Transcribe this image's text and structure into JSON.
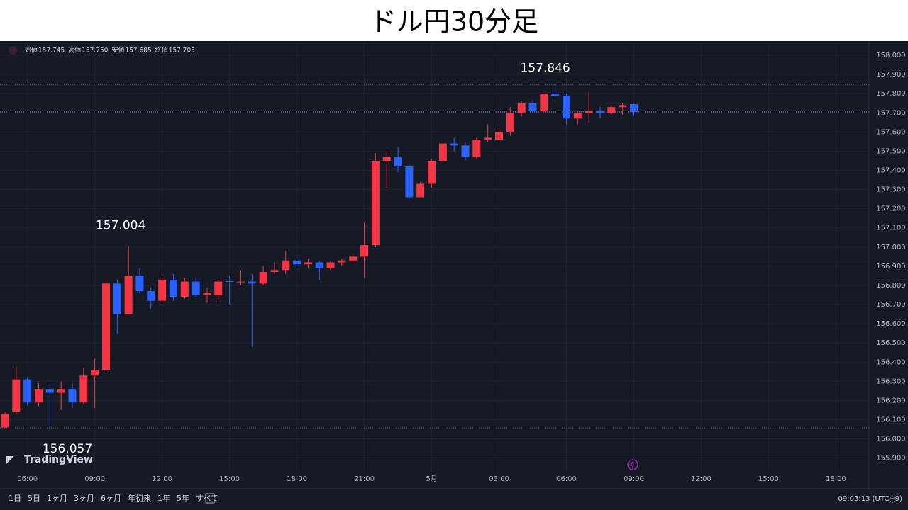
{
  "chart_data": {
    "type": "candlestick",
    "title": "ドル円30分足",
    "categories": [
      null,
      null,
      "06:00",
      null,
      null,
      null,
      null,
      null,
      "09:00",
      null,
      null,
      null,
      null,
      null,
      "12:00",
      null,
      null,
      null,
      null,
      null,
      "15:00",
      null,
      null,
      null,
      null,
      null,
      "18:00",
      null,
      null,
      null,
      null,
      null,
      "21:00",
      null,
      null,
      null,
      null,
      null,
      "5月",
      null,
      null,
      null,
      null,
      null,
      "03:00",
      null,
      null,
      null,
      null,
      null,
      "06:00",
      null,
      null,
      null,
      null,
      null,
      "09:00",
      null,
      null,
      null,
      null,
      null,
      "12:00",
      null,
      null,
      null,
      null,
      null,
      "15:00",
      null,
      null,
      null,
      null,
      null,
      "18:00",
      null,
      null,
      null
    ],
    "open": [
      156.06,
      156.14,
      156.31,
      156.19,
      156.26,
      156.24,
      156.26,
      156.19,
      156.33,
      156.36,
      156.81,
      156.65,
      156.85,
      156.77,
      156.72,
      156.83,
      156.74,
      156.82,
      156.75,
      156.75,
      156.822,
      156.82,
      156.82,
      156.81,
      156.87,
      156.88,
      156.93,
      156.91,
      156.92,
      156.89,
      156.92,
      156.93,
      156.95,
      157.01,
      157.45,
      157.47,
      157.42,
      157.26,
      157.33,
      157.45,
      157.54,
      157.53,
      157.47,
      157.56,
      157.56,
      157.6,
      157.7,
      157.75,
      157.71,
      157.8,
      157.79,
      157.67,
      157.7,
      157.71,
      157.7,
      157.73,
      157.745,
      null,
      null,
      null,
      null,
      null,
      null,
      null,
      null,
      null,
      null,
      null,
      null,
      null,
      null,
      null,
      null,
      null,
      null,
      null,
      null,
      null
    ],
    "high": [
      156.14,
      156.38,
      156.32,
      156.29,
      156.29,
      156.3,
      156.29,
      156.37,
      156.42,
      156.84,
      156.83,
      157.004,
      156.89,
      156.79,
      156.86,
      156.86,
      156.84,
      156.84,
      156.79,
      156.83,
      156.85,
      156.88,
      156.86,
      156.9,
      156.92,
      156.98,
      156.95,
      156.94,
      156.93,
      156.93,
      156.94,
      156.96,
      157.13,
      157.49,
      157.5,
      157.52,
      157.43,
      157.34,
      157.46,
      157.55,
      157.57,
      157.55,
      157.57,
      157.64,
      157.62,
      157.73,
      157.76,
      157.77,
      157.8,
      157.846,
      157.8,
      157.71,
      157.81,
      157.73,
      157.74,
      157.75,
      157.75,
      null,
      null,
      null,
      null,
      null,
      null,
      null,
      null,
      null,
      null,
      null,
      null,
      null,
      null,
      null,
      null,
      null,
      null,
      null,
      null,
      null
    ],
    "low": [
      156.057,
      156.13,
      156.17,
      156.17,
      156.06,
      156.15,
      156.16,
      156.18,
      156.16,
      156.35,
      156.55,
      156.65,
      156.76,
      156.68,
      156.71,
      156.72,
      156.73,
      156.74,
      156.71,
      156.71,
      156.7,
      156.8,
      156.48,
      156.8,
      156.86,
      156.86,
      156.88,
      156.89,
      156.83,
      156.88,
      156.9,
      156.92,
      156.84,
      157.0,
      157.31,
      157.39,
      157.25,
      157.26,
      157.31,
      157.44,
      157.5,
      157.45,
      157.46,
      157.55,
      157.55,
      157.58,
      157.68,
      157.7,
      157.7,
      157.78,
      157.64,
      157.64,
      157.65,
      157.67,
      157.69,
      157.69,
      157.685,
      null,
      null,
      null,
      null,
      null,
      null,
      null,
      null,
      null,
      null,
      null,
      null,
      null,
      null,
      null,
      null,
      null,
      null,
      null,
      null,
      null
    ],
    "close": [
      156.13,
      156.31,
      156.19,
      156.26,
      156.24,
      156.26,
      156.19,
      156.33,
      156.36,
      156.81,
      156.65,
      156.85,
      156.77,
      156.72,
      156.83,
      156.74,
      156.82,
      156.75,
      156.76,
      156.82,
      156.82,
      156.82,
      156.81,
      156.87,
      156.88,
      156.93,
      156.91,
      156.92,
      156.89,
      156.92,
      156.93,
      156.95,
      157.01,
      157.45,
      157.47,
      157.42,
      157.26,
      157.33,
      157.45,
      157.54,
      157.53,
      157.47,
      157.56,
      157.57,
      157.6,
      157.7,
      157.75,
      157.71,
      157.8,
      157.79,
      157.67,
      157.7,
      157.71,
      157.7,
      157.73,
      157.74,
      157.705,
      null,
      null,
      null,
      null,
      null,
      null,
      null,
      null,
      null,
      null,
      null,
      null,
      null,
      null,
      null,
      null,
      null,
      null,
      null,
      null,
      null
    ],
    "up_color": "#f23645",
    "down_color": "#2962ff",
    "ylim": [
      155.74,
      158.074
    ],
    "yticks": [
      {
        "value": 158.0,
        "label": "158.000"
      },
      {
        "value": 157.9,
        "label": "157.900"
      },
      {
        "value": 157.8,
        "label": "157.800"
      },
      {
        "value": 157.7,
        "label": "157.700"
      },
      {
        "value": 157.6,
        "label": "157.600"
      },
      {
        "value": 157.5,
        "label": "157.500"
      },
      {
        "value": 157.4,
        "label": "157.400"
      },
      {
        "value": 157.3,
        "label": "157.300"
      },
      {
        "value": 157.2,
        "label": "157.200"
      },
      {
        "value": 157.1,
        "label": "157.100"
      },
      {
        "value": 157.0,
        "label": "157.000"
      },
      {
        "value": 156.9,
        "label": "156.900"
      },
      {
        "value": 156.8,
        "label": "156.800"
      },
      {
        "value": 156.7,
        "label": "156.700"
      },
      {
        "value": 156.6,
        "label": "156.600"
      },
      {
        "value": 156.5,
        "label": "156.500"
      },
      {
        "value": 156.4,
        "label": "156.400"
      },
      {
        "value": 156.3,
        "label": "156.300"
      },
      {
        "value": 156.2,
        "label": "156.200"
      },
      {
        "value": 156.1,
        "label": "156.100"
      },
      {
        "value": 156.0,
        "label": "156.000"
      },
      {
        "value": 155.9,
        "label": "155.900"
      }
    ],
    "grid": true,
    "legend_labels": [
      "始値",
      "高値",
      "安値",
      "終値"
    ],
    "legend_values": [
      "157.745",
      "157.750",
      "157.685",
      "157.705"
    ],
    "logo": "TradingView",
    "range_buttons": [
      "1日",
      "5日",
      "1ヶ月",
      "3ヶ月",
      "6ヶ月",
      "年初来",
      "1年",
      "5年",
      "すべて"
    ],
    "timestamp": "09:03:13 (UTC+9)"
  }
}
